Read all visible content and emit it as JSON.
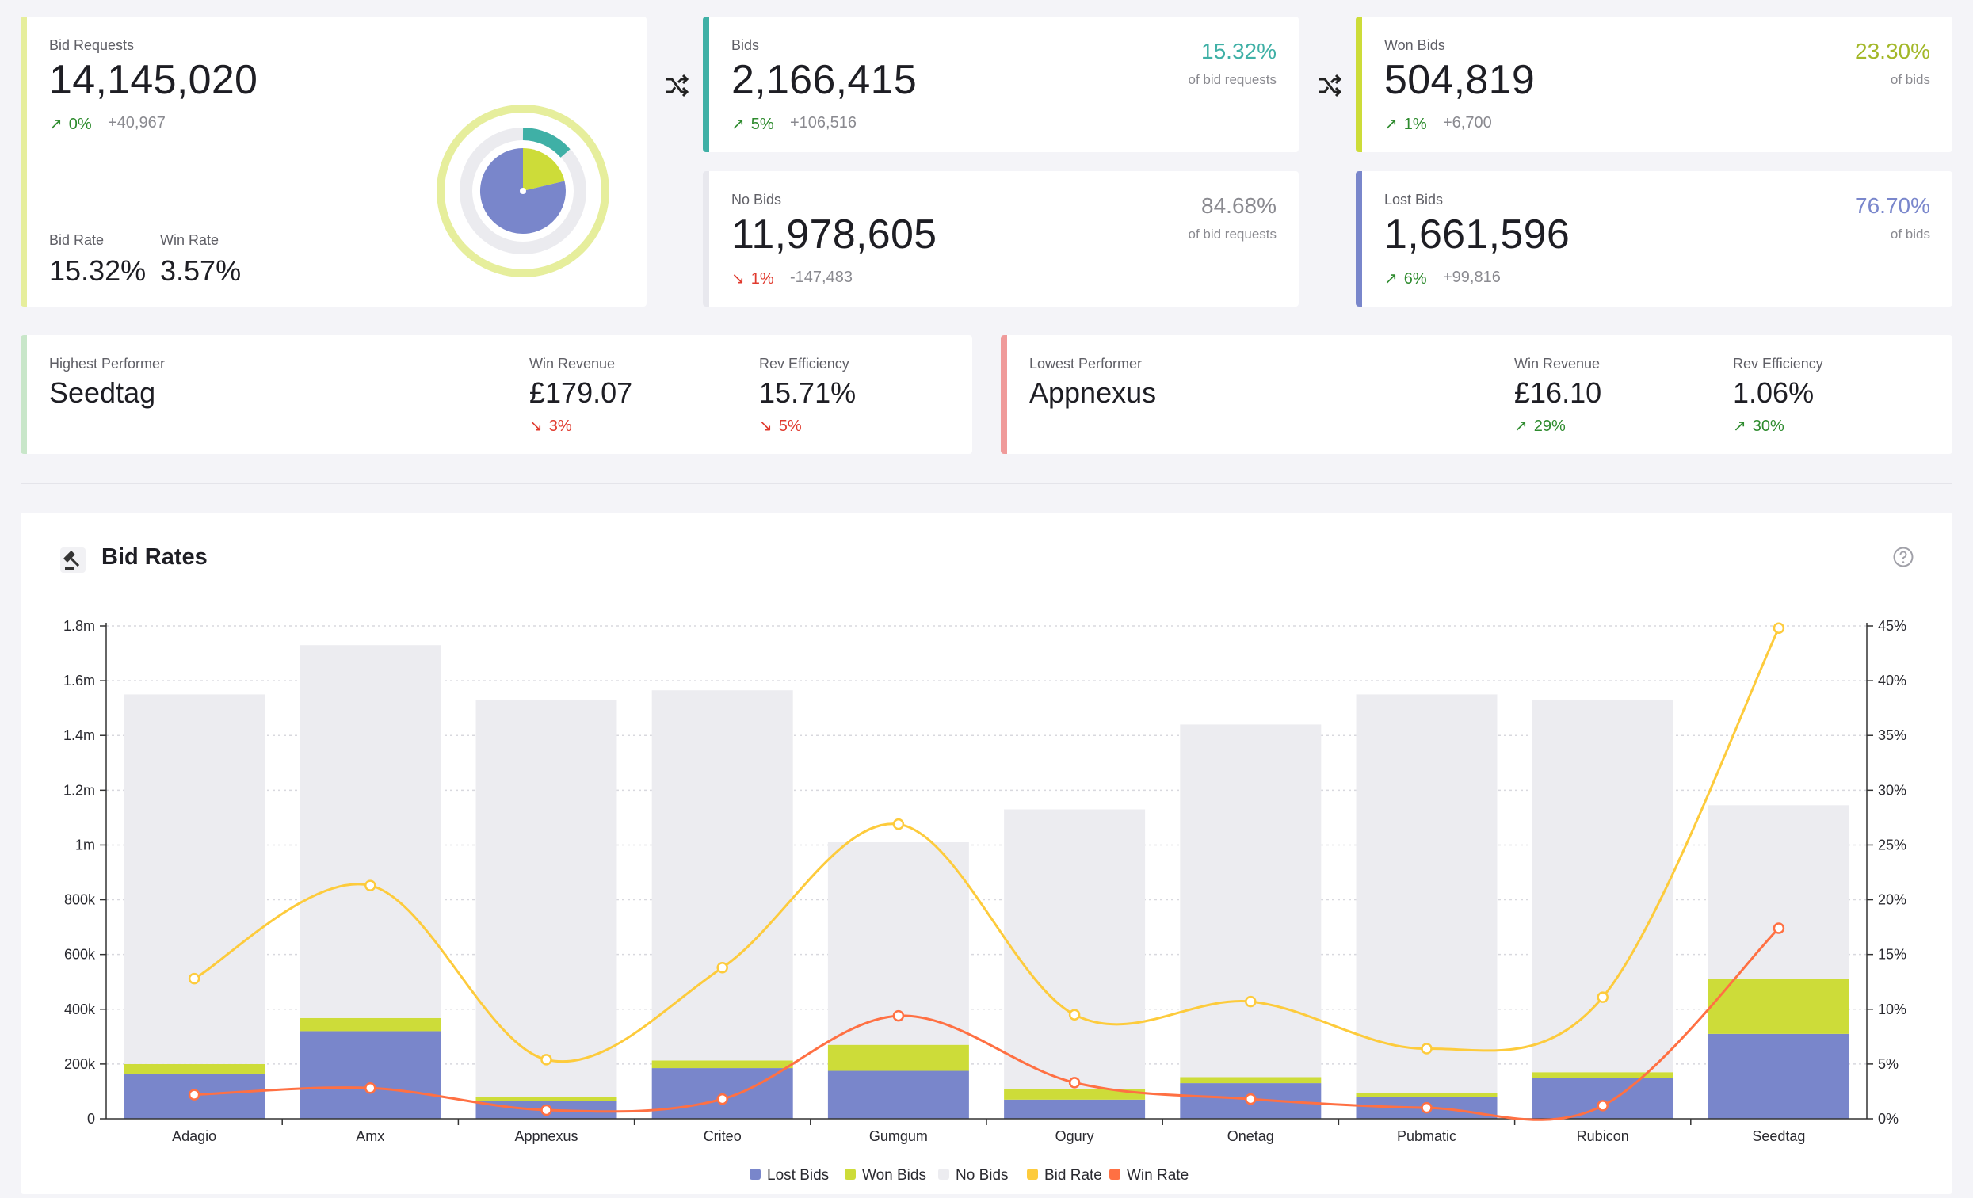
{
  "bid_requests": {
    "label": "Bid Requests",
    "value": "14,145,020",
    "change": "0%",
    "delta": "+40,967",
    "bid_rate_label": "Bid Rate",
    "bid_rate": "15.32%",
    "win_rate_label": "Win Rate",
    "win_rate": "3.57%"
  },
  "bids": {
    "label": "Bids",
    "value": "2,166,415",
    "change": "5%",
    "delta": "+106,516",
    "pct": "15.32%",
    "pct_of": "of bid requests",
    "color": "#3fb0a6"
  },
  "no_bids": {
    "label": "No Bids",
    "value": "11,978,605",
    "change": "1%",
    "delta": "-147,483",
    "pct": "84.68%",
    "pct_of": "of bid requests",
    "color": "#8a8a90"
  },
  "won_bids": {
    "label": "Won Bids",
    "value": "504,819",
    "change": "1%",
    "delta": "+6,700",
    "pct": "23.30%",
    "pct_of": "of bids",
    "color": "#a3b829"
  },
  "lost_bids": {
    "label": "Lost Bids",
    "value": "1,661,596",
    "change": "6%",
    "delta": "+99,816",
    "pct": "76.70%",
    "pct_of": "of bids",
    "color": "#7a87cc"
  },
  "highest": {
    "label": "Highest Performer",
    "name": "Seedtag",
    "win_revenue_label": "Win Revenue",
    "win_revenue": "£179.07",
    "win_revenue_change": "3%",
    "rev_eff_label": "Rev Efficiency",
    "rev_eff": "15.71%",
    "rev_eff_change": "5%"
  },
  "lowest": {
    "label": "Lowest Performer",
    "name": "Appnexus",
    "win_revenue_label": "Win Revenue",
    "win_revenue": "£16.10",
    "win_revenue_change": "29%",
    "rev_eff_label": "Rev Efficiency",
    "rev_eff": "1.06%",
    "rev_eff_change": "30%"
  },
  "colors": {
    "requests_accent": "#e6ee9c",
    "bids_accent": "#3fb0a6",
    "no_bids_accent": "#e8e8ee",
    "won_accent": "#cddc39",
    "lost_accent": "#7986cb",
    "highest_accent": "#c8e6c9",
    "lowest_accent": "#ef9a9a",
    "lost_bar": "#7986cb",
    "won_bar": "#cddc39",
    "no_bar": "#ececf0",
    "bid_rate_line": "#fdcb3c",
    "win_rate_line": "#ff7043"
  },
  "icons": {
    "flow": "shuffle-icon",
    "gavel": "gavel-icon",
    "help": "help-circle-icon"
  },
  "chart_title": "Bid Rates",
  "chart_data": {
    "type": "bar",
    "stacked": true,
    "categories": [
      "Adagio",
      "Amx",
      "Appnexus",
      "Criteo",
      "Gumgum",
      "Ogury",
      "Onetag",
      "Pubmatic",
      "Rubicon",
      "Seedtag"
    ],
    "series": [
      {
        "name": "Lost Bids",
        "axis": "left",
        "values": [
          165000,
          320000,
          65000,
          185000,
          175000,
          70000,
          130000,
          80000,
          150000,
          310000
        ]
      },
      {
        "name": "Won Bids",
        "axis": "left",
        "values": [
          35000,
          48000,
          15000,
          28000,
          95000,
          38000,
          22000,
          15000,
          20000,
          200000
        ]
      },
      {
        "name": "No Bids",
        "axis": "left",
        "values": [
          1350000,
          1362000,
          1450000,
          1352000,
          740000,
          1022000,
          1288000,
          1455000,
          1360000,
          635000
        ]
      },
      {
        "name": "Bid Rate",
        "type": "line",
        "axis": "right",
        "values": [
          12.8,
          21.3,
          5.4,
          13.8,
          26.9,
          9.5,
          10.7,
          6.4,
          11.1,
          44.8
        ]
      },
      {
        "name": "Win Rate",
        "type": "line",
        "axis": "right",
        "values": [
          2.2,
          2.8,
          0.8,
          1.8,
          9.4,
          3.3,
          1.8,
          1.0,
          1.2,
          17.4
        ]
      }
    ],
    "y_left": {
      "ylim": [
        0,
        1800000
      ],
      "ticks": [
        0,
        200000,
        400000,
        600000,
        800000,
        1000000,
        1200000,
        1400000,
        1600000,
        1800000
      ],
      "tick_labels": [
        "0",
        "200k",
        "400k",
        "600k",
        "800k",
        "1m",
        "1.2m",
        "1.4m",
        "1.6m",
        "1.8m"
      ]
    },
    "y_right": {
      "ylim": [
        0,
        45
      ],
      "ticks": [
        0,
        5,
        10,
        15,
        20,
        25,
        30,
        35,
        40,
        45
      ],
      "tick_labels": [
        "0%",
        "5%",
        "10%",
        "15%",
        "20%",
        "25%",
        "30%",
        "35%",
        "40%",
        "45%"
      ]
    },
    "grid": true,
    "legend": "bottom-center",
    "legend_entries": [
      "Lost Bids",
      "Won Bids",
      "No Bids",
      "Bid Rate",
      "Win Rate"
    ]
  }
}
